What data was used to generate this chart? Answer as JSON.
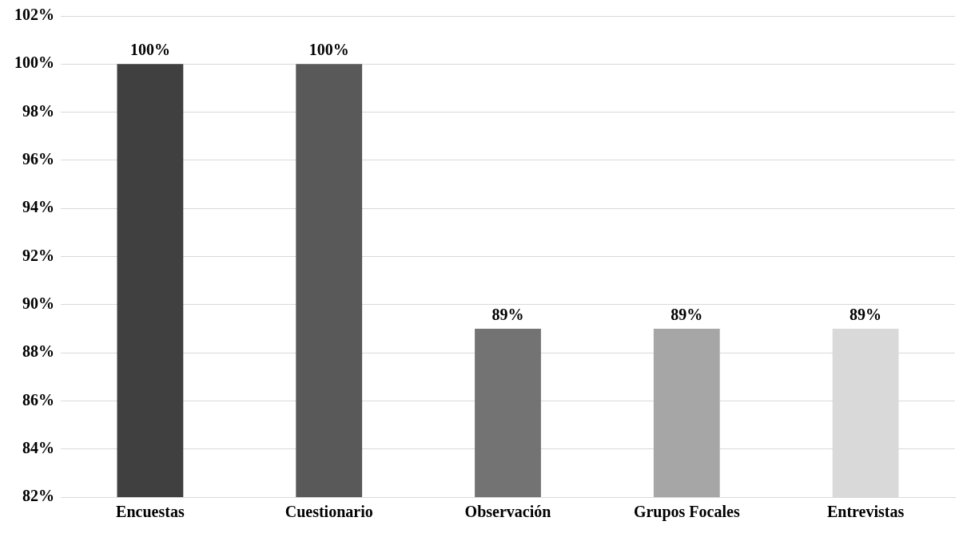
{
  "chart_data": {
    "type": "bar",
    "categories": [
      "Encuestas",
      "Cuestionario",
      "Observación",
      "Grupos Focales",
      "Entrevistas"
    ],
    "values": [
      100,
      100,
      89,
      89,
      89
    ],
    "colors": [
      "#404040",
      "#595959",
      "#737373",
      "#a6a6a6",
      "#d9d9d9"
    ],
    "value_labels": [
      "100%",
      "100%",
      "89%",
      "89%",
      "89%"
    ],
    "ylim": [
      82,
      102
    ],
    "yticks": [
      {
        "value": 82,
        "label": "82%"
      },
      {
        "value": 84,
        "label": "84%"
      },
      {
        "value": 86,
        "label": "86%"
      },
      {
        "value": 88,
        "label": "88%"
      },
      {
        "value": 90,
        "label": "90%"
      },
      {
        "value": 92,
        "label": "92%"
      },
      {
        "value": 94,
        "label": "94%"
      },
      {
        "value": 96,
        "label": "96%"
      },
      {
        "value": 98,
        "label": "98%"
      },
      {
        "value": 100,
        "label": "100%"
      },
      {
        "value": 102,
        "label": "102%"
      }
    ],
    "grid": "y",
    "legend": false
  }
}
